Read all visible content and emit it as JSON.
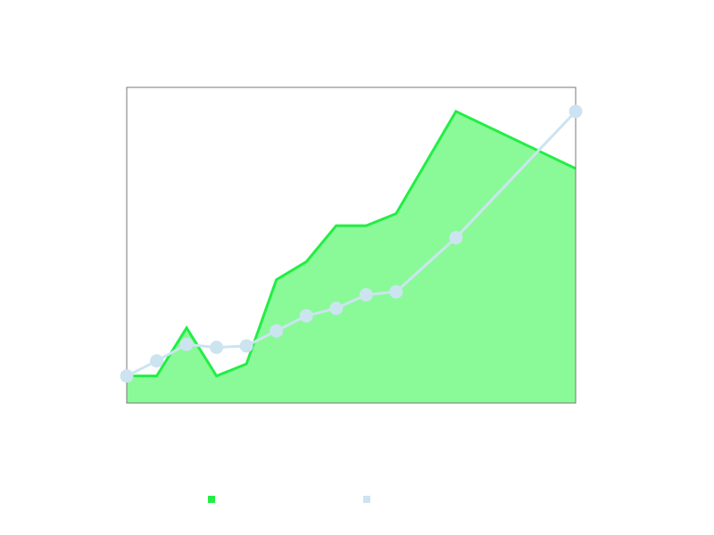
{
  "chart_data": {
    "type": "area",
    "title": "",
    "xlabel": "",
    "ylabel": "",
    "x": [
      0,
      1,
      2,
      3,
      4,
      5,
      6,
      7,
      8,
      9,
      11,
      15
    ],
    "xlim": [
      0,
      15
    ],
    "ylim": [
      -2,
      103
    ],
    "grid": false,
    "legend_position": "bottom",
    "series": [
      {
        "type": "area",
        "color": "#22ee44",
        "fill": "#8afa98",
        "values": [
          7,
          7,
          23,
          7,
          11,
          39,
          45,
          57,
          57,
          61,
          95,
          76
        ]
      },
      {
        "type": "line",
        "color": "#cce4f0",
        "values": [
          7,
          12,
          17.5,
          16.5,
          17,
          22,
          27,
          29.5,
          34,
          35,
          53,
          95
        ]
      }
    ]
  }
}
